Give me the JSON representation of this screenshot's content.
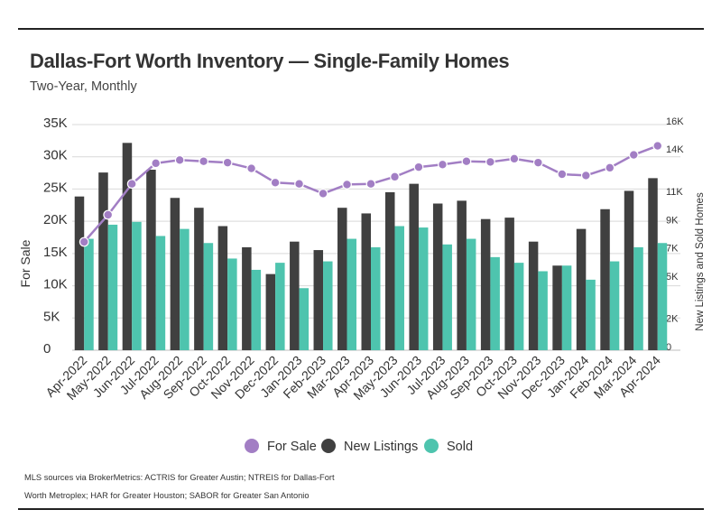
{
  "header": {
    "title": "Dallas-Fort Worth Inventory — Single-Family Homes",
    "subtitle": "Two-Year, Monthly"
  },
  "footer": {
    "note_line1": "MLS sources via BrokerMetrics: ACTRIS for Greater Austin; NTREIS for Dallas-Fort",
    "note_line2": "Worth Metroplex; HAR for Greater Houston; SABOR for Greater San Antonio"
  },
  "colors": {
    "for_sale": "#a27ec4",
    "new_listings": "#404040",
    "sold": "#4ec4ae",
    "grid": "#d9d9d9",
    "rule": "#222222"
  },
  "chart_data": {
    "type": "bar",
    "title": "Dallas-Fort Worth Inventory — Single-Family Homes",
    "subtitle": "Two-Year, Monthly",
    "categories": [
      "Apr-2022",
      "May-2022",
      "Jun-2022",
      "Jul-2022",
      "Aug-2022",
      "Sep-2022",
      "Oct-2022",
      "Nov-2022",
      "Dec-2022",
      "Jan-2023",
      "Feb-2023",
      "Mar-2023",
      "Apr-2023",
      "May-2023",
      "Jun-2023",
      "Jul-2023",
      "Aug-2023",
      "Sep-2023",
      "Oct-2023",
      "Nov-2023",
      "Dec-2023",
      "Jan-2024",
      "Feb-2024",
      "Mar-2024",
      "Apr-2024"
    ],
    "ylabel_left": "For Sale",
    "ylabel_right": "New Listings and Sold Homes",
    "left_axis": {
      "ylim": [
        0,
        35000
      ],
      "ticks": [
        0,
        5000,
        10000,
        15000,
        20000,
        25000,
        30000,
        35000
      ],
      "tick_labels": [
        "0",
        "5K",
        "10K",
        "15K",
        "20K",
        "25K",
        "30K",
        "35K"
      ]
    },
    "right_axis": {
      "ylim": [
        0,
        16000
      ],
      "ticks": [
        0,
        2000,
        5000,
        7000,
        9000,
        11000,
        14000,
        16000
      ],
      "tick_labels": [
        "0",
        "2K",
        "5K",
        "7K",
        "9K",
        "11K",
        "14K",
        "16K"
      ]
    },
    "grid": true,
    "legend_position": "bottom-center",
    "series": [
      {
        "name": "For Sale",
        "type": "line",
        "axis": "left",
        "values": [
          16800,
          21000,
          25800,
          29000,
          29500,
          29300,
          29100,
          28200,
          26000,
          25800,
          24300,
          25700,
          25800,
          26900,
          28400,
          28800,
          29300,
          29200,
          29700,
          29100,
          27300,
          27100,
          28300,
          30300,
          31700
        ]
      },
      {
        "name": "New Listings",
        "type": "bar",
        "axis": "right",
        "values": [
          10900,
          12600,
          14700,
          12800,
          10800,
          10100,
          8800,
          7300,
          5400,
          7700,
          7100,
          10100,
          9700,
          11200,
          11800,
          10400,
          10600,
          9300,
          9400,
          7700,
          6000,
          8600,
          10000,
          11300,
          12200
        ]
      },
      {
        "name": "Sold",
        "type": "bar",
        "axis": "right",
        "values": [
          7900,
          8900,
          9100,
          8100,
          8600,
          7600,
          6500,
          5700,
          6200,
          4400,
          6300,
          7900,
          7300,
          8800,
          8700,
          7500,
          7900,
          6600,
          6200,
          5600,
          6000,
          5000,
          6300,
          7300,
          7600
        ]
      }
    ]
  }
}
